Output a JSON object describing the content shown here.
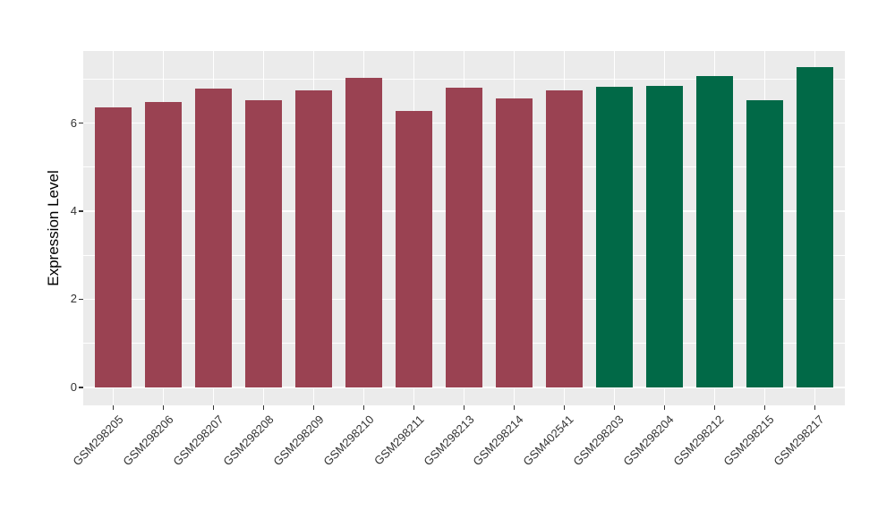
{
  "chart_data": {
    "type": "bar",
    "title": "",
    "xlabel": "",
    "ylabel": "Expression Level",
    "categories": [
      "GSM298205",
      "GSM298206",
      "GSM298207",
      "GSM298208",
      "GSM298209",
      "GSM298210",
      "GSM298211",
      "GSM298213",
      "GSM298214",
      "GSM402541",
      "GSM298203",
      "GSM298204",
      "GSM298212",
      "GSM298215",
      "GSM298217"
    ],
    "values": [
      6.36,
      6.49,
      6.78,
      6.52,
      6.74,
      7.02,
      6.28,
      6.81,
      6.56,
      6.74,
      6.83,
      6.85,
      7.08,
      6.52,
      7.28
    ],
    "bar_colors": [
      "#9A4252",
      "#9A4252",
      "#9A4252",
      "#9A4252",
      "#9A4252",
      "#9A4252",
      "#9A4252",
      "#9A4252",
      "#9A4252",
      "#9A4252",
      "#016947",
      "#016947",
      "#016947",
      "#016947",
      "#016947"
    ],
    "group_colors": {
      "red_group": "#9A4252",
      "green_group": "#016947"
    },
    "ytick_labels": [
      "0",
      "2",
      "4",
      "6"
    ],
    "yticks": [
      0,
      2,
      4,
      6
    ],
    "yminor": [
      1,
      3,
      5,
      7
    ],
    "ylim": [
      -0.41,
      7.64
    ],
    "grid": "on",
    "legend_position": "none",
    "panel_bg": "#EBEBEB",
    "grid_color": "#FFFFFF",
    "axis_text_color": "#333333",
    "tick_mark_color": "#333333",
    "bar_width_fraction": 0.73
  }
}
